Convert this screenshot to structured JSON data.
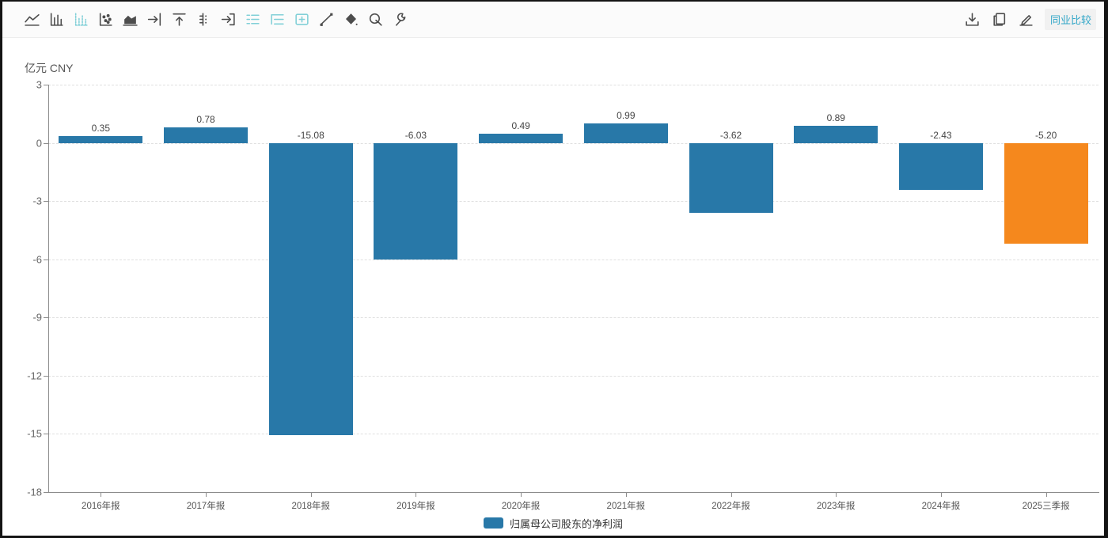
{
  "toolbar": {
    "left_icons": [
      {
        "name": "line-chart",
        "active": false
      },
      {
        "name": "bar-chart",
        "active": false
      },
      {
        "name": "bar-chart-dotted",
        "active": true
      },
      {
        "name": "scatter-chart",
        "active": false
      },
      {
        "name": "area-chart",
        "active": false
      },
      {
        "name": "arrow-bar-right",
        "active": false
      },
      {
        "name": "arrow-bar-up",
        "active": false
      },
      {
        "name": "axis-ticks",
        "active": false
      },
      {
        "name": "arrow-into-box",
        "active": false
      },
      {
        "name": "legend-list",
        "active": true
      },
      {
        "name": "legend-list-alt",
        "active": true
      },
      {
        "name": "grid-plus",
        "active": true
      },
      {
        "name": "trend-line",
        "active": false
      },
      {
        "name": "diamond",
        "active": false
      },
      {
        "name": "magnifier",
        "active": false
      },
      {
        "name": "wrench",
        "active": false
      }
    ],
    "right_icons": [
      "download",
      "copy",
      "edit"
    ],
    "peer_compare_label": "同业比较"
  },
  "chart": {
    "unit_label": "亿元 CNY",
    "legend": {
      "label": "归属母公司股东的净利润",
      "color": "#2878a8"
    }
  },
  "chart_data": {
    "type": "bar",
    "title": "",
    "unit": "亿元 CNY",
    "categories": [
      "2016年报",
      "2017年报",
      "2018年报",
      "2019年报",
      "2020年报",
      "2021年报",
      "2022年报",
      "2023年报",
      "2024年报",
      "2025三季报"
    ],
    "series": [
      {
        "name": "归属母公司股东的净利润",
        "values": [
          0.35,
          0.78,
          -15.08,
          -6.03,
          0.49,
          0.99,
          -3.62,
          0.89,
          -2.43,
          -5.2
        ]
      }
    ],
    "value_labels": [
      "0.35",
      "0.78",
      "-15.08",
      "-6.03",
      "0.49",
      "0.99",
      "-3.62",
      "0.89",
      "-2.43",
      "-5.20"
    ],
    "bar_colors": [
      "#2878a8",
      "#2878a8",
      "#2878a8",
      "#2878a8",
      "#2878a8",
      "#2878a8",
      "#2878a8",
      "#2878a8",
      "#2878a8",
      "#f5881d"
    ],
    "ylim": [
      -18,
      3
    ],
    "yticks": [
      3,
      0,
      -3,
      -6,
      -9,
      -12,
      -15,
      -18
    ],
    "grid": true,
    "legend_position": "bottom"
  },
  "colors": {
    "bar_default": "#2878a8",
    "bar_highlight": "#f5881d",
    "active_icon": "#82d0d8",
    "peer_link": "#33a7c8",
    "axis": "#8c8c8c",
    "gridline": "#e0e0e0"
  }
}
